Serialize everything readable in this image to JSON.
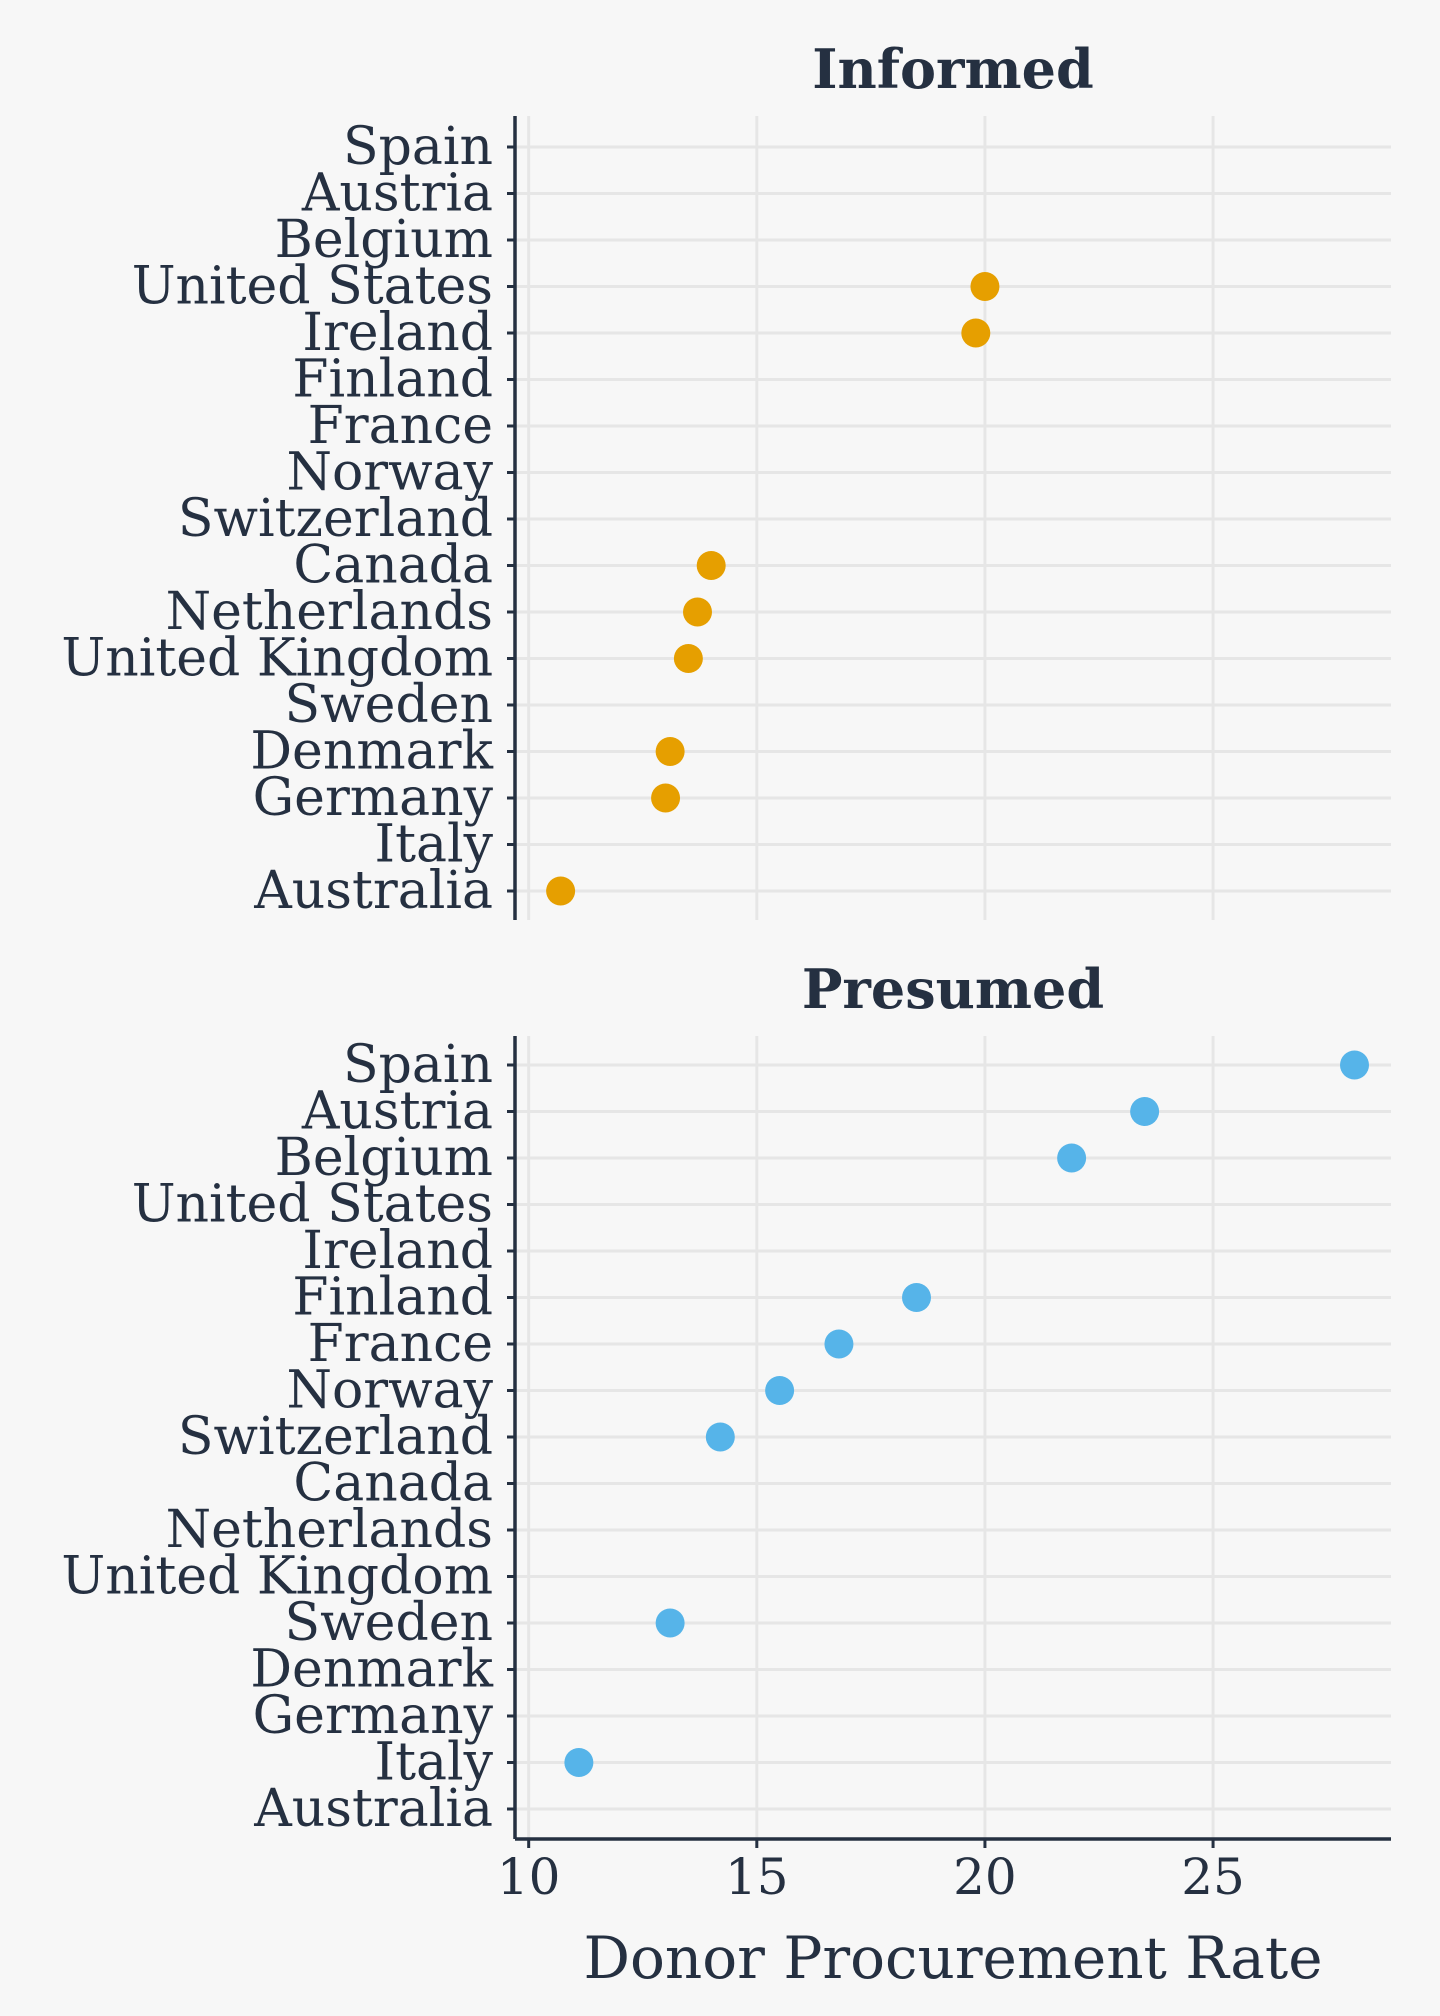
{
  "chart_data": {
    "type": "scatter",
    "xlabel": "Donor Procurement Rate",
    "xlim": [
      9.7,
      28.9
    ],
    "xticks": [
      10,
      15,
      20,
      25
    ],
    "grid": true,
    "categories": [
      "Spain",
      "Austria",
      "Belgium",
      "United States",
      "Ireland",
      "Finland",
      "France",
      "Norway",
      "Switzerland",
      "Canada",
      "Netherlands",
      "United Kingdom",
      "Sweden",
      "Denmark",
      "Germany",
      "Italy",
      "Australia"
    ],
    "panels": [
      {
        "title": "Informed",
        "color": "#E69F00",
        "points": [
          {
            "country": "United States",
            "value": 20.0
          },
          {
            "country": "Ireland",
            "value": 19.8
          },
          {
            "country": "Canada",
            "value": 14.0
          },
          {
            "country": "Netherlands",
            "value": 13.7
          },
          {
            "country": "United Kingdom",
            "value": 13.5
          },
          {
            "country": "Denmark",
            "value": 13.1
          },
          {
            "country": "Germany",
            "value": 13.0
          },
          {
            "country": "Australia",
            "value": 10.7
          }
        ]
      },
      {
        "title": "Presumed",
        "color": "#56B4E9",
        "points": [
          {
            "country": "Spain",
            "value": 28.1
          },
          {
            "country": "Austria",
            "value": 23.5
          },
          {
            "country": "Belgium",
            "value": 21.9
          },
          {
            "country": "Finland",
            "value": 18.5
          },
          {
            "country": "France",
            "value": 16.8
          },
          {
            "country": "Norway",
            "value": 15.5
          },
          {
            "country": "Switzerland",
            "value": 14.2
          },
          {
            "country": "Sweden",
            "value": 13.1
          },
          {
            "country": "Italy",
            "value": 11.1
          }
        ]
      }
    ]
  }
}
